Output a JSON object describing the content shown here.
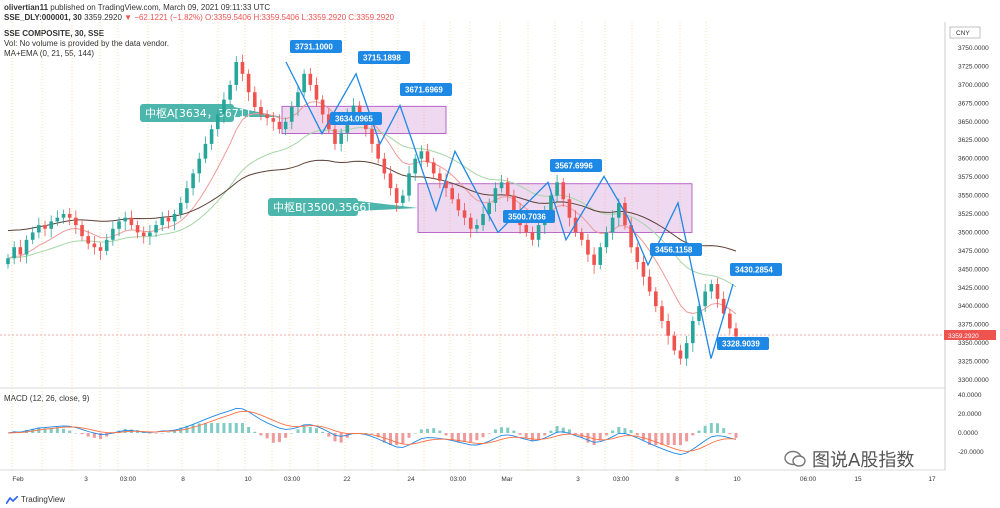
{
  "header": {
    "publisher": "olivertian11",
    "published_text": "published on TradingView.com, March 09, 2021 09:11:33 UTC",
    "ticker_line": "SSE_DLY:000001, 30",
    "close_value": "3359.2920",
    "change_text": "▼ −62.1221 (−1.82%)",
    "ohlc_text": "O:3359.5406 H:3359.5406 L:3359.2920 C:3359.2920",
    "symbol_title": "SSE COMPOSITE, 30, SSE",
    "volume_note": "Vol: No volume is provided by the data vendor.",
    "indicator_label": "MA+EMA (0, 21, 55, 144)",
    "macd_label": "MACD (12, 26, close, 9)",
    "currency": "CNY"
  },
  "price_axis": [
    "3750.0000",
    "3725.0000",
    "3700.0000",
    "3675.0000",
    "3650.0000",
    "3625.0000",
    "3600.0000",
    "3575.0000",
    "3550.0000",
    "3525.0000",
    "3500.0000",
    "3475.0000",
    "3450.0000",
    "3425.0000",
    "3400.0000",
    "3375.0000",
    "3350.0000",
    "3325.0000",
    "3300.0000"
  ],
  "last_price_tag": "3359.2920",
  "macd_axis": [
    "40.0000",
    "20.0000",
    "0.0000",
    "-20.0000"
  ],
  "time_axis": [
    "Feb",
    "3",
    "03:00",
    "8",
    "10",
    "03:00",
    "22",
    "24",
    "03:00",
    "Mar",
    "3",
    "03:00",
    "8",
    "10",
    "06:00",
    "15",
    "17"
  ],
  "chart_data": {
    "type": "candlestick",
    "title": "SSE COMPOSITE, 30, SSE",
    "ylim": [
      3290,
      3760
    ],
    "zones": [
      {
        "label": "中枢A[3634，3671]",
        "low": 3634,
        "high": 3671
      },
      {
        "label": "中枢B[3500,3566]",
        "low": 3500,
        "high": 3566
      }
    ],
    "callouts": [
      "3731.1000",
      "3715.1898",
      "3671.6969",
      "3634.0965",
      "3567.6996",
      "3500.7036",
      "3456.1158",
      "3430.2854",
      "3328.9039"
    ],
    "close_path": [
      3465,
      3480,
      3470,
      3490,
      3500,
      3510,
      3505,
      3515,
      3520,
      3525,
      3520,
      3510,
      3495,
      3485,
      3480,
      3475,
      3490,
      3505,
      3515,
      3520,
      3510,
      3500,
      3495,
      3500,
      3510,
      3520,
      3515,
      3525,
      3540,
      3560,
      3580,
      3600,
      3620,
      3640,
      3660,
      3680,
      3700,
      3731,
      3715,
      3690,
      3670,
      3660,
      3655,
      3650,
      3640,
      3650,
      3670,
      3690,
      3715,
      3700,
      3680,
      3660,
      3640,
      3620,
      3635,
      3660,
      3672,
      3655,
      3640,
      3620,
      3600,
      3580,
      3560,
      3540,
      3550,
      3580,
      3600,
      3610,
      3595,
      3580,
      3570,
      3560,
      3545,
      3530,
      3520,
      3505,
      3510,
      3525,
      3540,
      3560,
      3568,
      3550,
      3530,
      3510,
      3500,
      3490,
      3510,
      3530,
      3550,
      3568,
      3545,
      3520,
      3500,
      3490,
      3470,
      3456,
      3480,
      3500,
      3520,
      3540,
      3510,
      3480,
      3460,
      3440,
      3420,
      3400,
      3380,
      3360,
      3340,
      3329,
      3350,
      3380,
      3400,
      3420,
      3430,
      3410,
      3390,
      3370,
      3359
    ]
  },
  "watermark": "图说A股指数",
  "brand": "TradingView"
}
